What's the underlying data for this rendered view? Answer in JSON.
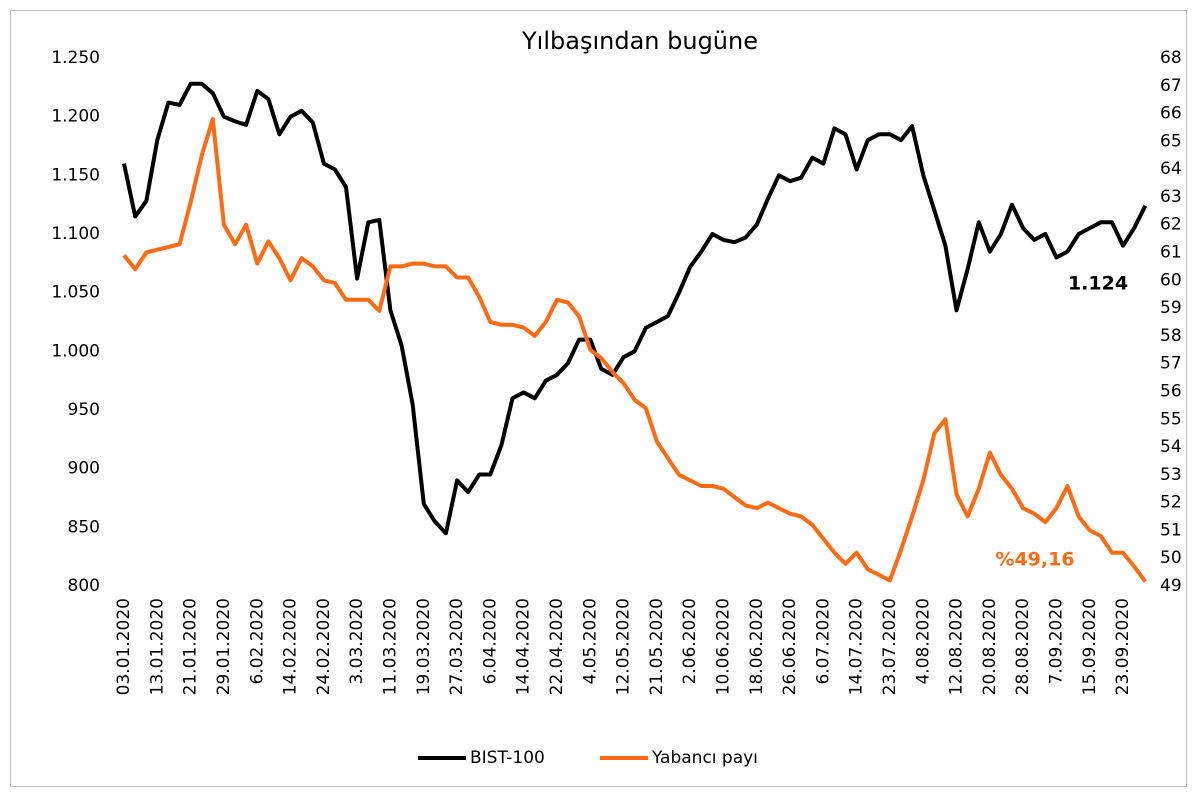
{
  "chart_data": {
    "type": "line",
    "title": "Yılbaşından bugüne",
    "categories": [
      "03.01.2020",
      null,
      null,
      "13.01.2020",
      null,
      null,
      "21.01.2020",
      null,
      null,
      "29.01.2020",
      null,
      null,
      "6.02.2020",
      null,
      null,
      "14.02.2020",
      null,
      null,
      "24.02.2020",
      null,
      null,
      "3.03.2020",
      null,
      null,
      "11.03.2020",
      null,
      null,
      "19.03.2020",
      null,
      null,
      "27.03.2020",
      null,
      null,
      "6.04.2020",
      null,
      null,
      "14.04.2020",
      null,
      null,
      "22.04.2020",
      null,
      null,
      "4.05.2020",
      null,
      null,
      "12.05.2020",
      null,
      null,
      "21.05.2020",
      null,
      null,
      "2.06.2020",
      null,
      null,
      "10.06.2020",
      null,
      null,
      "18.06.2020",
      null,
      null,
      "26.06.2020",
      null,
      null,
      "6.07.2020",
      null,
      null,
      "14.07.2020",
      null,
      null,
      "23.07.2020",
      null,
      null,
      "4.08.2020",
      null,
      null,
      "12.08.2020",
      null,
      null,
      "20.08.2020",
      null,
      null,
      "28.08.2020",
      null,
      null,
      "7.09.2020",
      null,
      null,
      "15.09.2020",
      null,
      null,
      "23.09.2020",
      null,
      null
    ],
    "series": [
      {
        "name": "BIST-100",
        "color": "#000000",
        "values": [
          1160,
          1115,
          1128,
          1180,
          1212,
          1210,
          1228,
          1228,
          1220,
          1200,
          1196,
          1193,
          1222,
          1215,
          1185,
          1200,
          1205,
          1195,
          1160,
          1155,
          1140,
          1062,
          1110,
          1112,
          1035,
          1005,
          955,
          870,
          855,
          845,
          890,
          880,
          895,
          895,
          920,
          960,
          965,
          960,
          975,
          980,
          990,
          1010,
          1010,
          985,
          980,
          995,
          1000,
          1020,
          1025,
          1030,
          1050,
          1072,
          1085,
          1100,
          1095,
          1093,
          1097,
          1108,
          1130,
          1150,
          1145,
          1148,
          1165,
          1160,
          1190,
          1185,
          1155,
          1180,
          1185,
          1185,
          1180,
          1192,
          1150,
          1120,
          1090,
          1035,
          1070,
          1110,
          1085,
          1100,
          1125,
          1105,
          1095,
          1100,
          1080,
          1085,
          1100,
          1105,
          1110,
          1110,
          1090,
          1105,
          1124
        ]
      },
      {
        "name": "Yabancı payı",
        "color": "#ff6a13",
        "axis": "y2",
        "values": [
          60.9,
          60.4,
          61.0,
          61.1,
          61.2,
          61.3,
          62.8,
          64.5,
          65.8,
          62.0,
          61.3,
          62.0,
          60.6,
          61.4,
          60.8,
          60.0,
          60.8,
          60.5,
          60.0,
          59.9,
          59.3,
          59.3,
          59.3,
          58.9,
          60.5,
          60.5,
          60.6,
          60.6,
          60.5,
          60.5,
          60.1,
          60.1,
          59.4,
          58.5,
          58.4,
          58.4,
          58.3,
          58.0,
          58.5,
          59.3,
          59.2,
          58.7,
          57.5,
          57.2,
          56.7,
          56.3,
          55.7,
          55.4,
          54.2,
          53.6,
          53.0,
          52.8,
          52.6,
          52.6,
          52.5,
          52.2,
          51.9,
          51.8,
          52.0,
          51.8,
          51.6,
          51.5,
          51.2,
          50.7,
          50.2,
          49.8,
          50.2,
          49.6,
          49.4,
          49.2,
          50.3,
          51.5,
          52.8,
          54.5,
          55.0,
          52.3,
          51.5,
          52.5,
          53.8,
          53.0,
          52.5,
          51.8,
          51.6,
          51.3,
          51.8,
          52.6,
          51.5,
          51.0,
          50.8,
          50.2,
          50.2,
          49.7,
          49.16
        ]
      }
    ],
    "ylim": [
      800,
      1250
    ],
    "yticks": [
      800,
      850,
      900,
      950,
      {
        "value": 1000,
        "label": "1.000"
      },
      {
        "value": 1050,
        "label": "1.050"
      },
      {
        "value": 1100,
        "label": "1.100"
      },
      {
        "value": 1150,
        "label": "1.150"
      },
      {
        "value": 1200,
        "label": "1.200"
      },
      {
        "value": 1250,
        "label": "1.250"
      }
    ],
    "y2lim": [
      49,
      68
    ],
    "y2ticks": [
      49,
      50,
      51,
      52,
      53,
      54,
      55,
      56,
      57,
      58,
      59,
      60,
      61,
      62,
      63,
      64,
      65,
      66,
      67,
      68
    ],
    "annotations": [
      "1.124",
      "%49,16"
    ],
    "legend": "bottom"
  }
}
